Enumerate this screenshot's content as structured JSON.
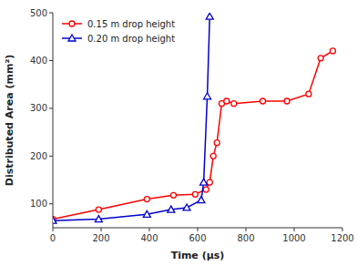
{
  "chart_data": {
    "type": "line",
    "xlabel": "Time (μs)",
    "ylabel": "Distributed Area (mm²)",
    "xlim": [
      0,
      1200
    ],
    "ylim": [
      50,
      500
    ],
    "xticks": [
      0,
      200,
      400,
      600,
      800,
      1000,
      1200
    ],
    "yticks": [
      100,
      200,
      300,
      400,
      500
    ],
    "legend": "upper left",
    "series": [
      {
        "name": "0.15 m drop height",
        "color": "#ff0000",
        "marker": "circle",
        "x": [
          0,
          190,
          390,
          500,
          590,
          635,
          650,
          665,
          680,
          700,
          720,
          750,
          870,
          970,
          1060,
          1110,
          1160
        ],
        "values": [
          68,
          88,
          110,
          118,
          120,
          130,
          145,
          200,
          228,
          310,
          315,
          310,
          315,
          315,
          330,
          405,
          420
        ]
      },
      {
        "name": "0.20 m drop height",
        "color": "#0000cc",
        "marker": "triangle",
        "x": [
          0,
          190,
          390,
          490,
          555,
          615,
          625,
          640,
          650
        ],
        "values": [
          65,
          68,
          78,
          88,
          92,
          108,
          145,
          325,
          492
        ]
      }
    ]
  }
}
